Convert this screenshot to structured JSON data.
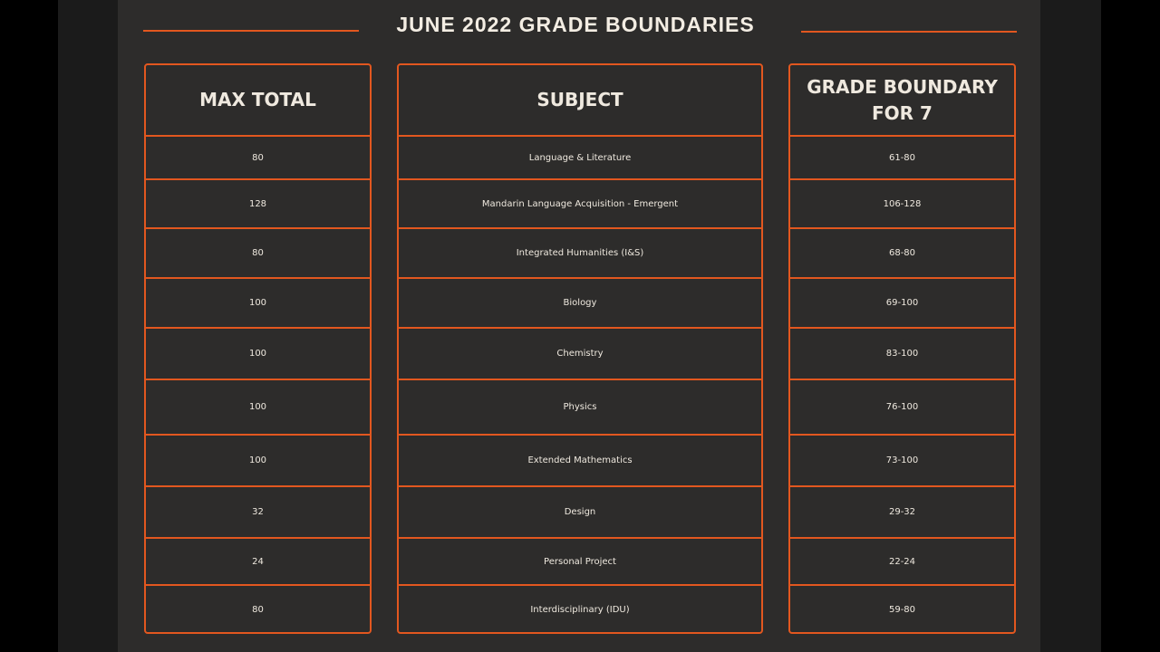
{
  "title": "JUNE 2022 GRADE BOUNDARIES",
  "columns": [
    {
      "header": "MAX TOTAL",
      "cells": [
        80,
        128,
        80,
        100,
        100,
        100,
        100,
        32,
        24,
        80
      ]
    },
    {
      "header": "SUBJECT",
      "cells": [
        "Language & Literature",
        "Mandarin Language Acquisition - Emergent",
        "Integrated Humanities (I&S)",
        "Biology",
        "Chemistry",
        "Physics",
        "Extended Mathematics",
        "Design",
        "Personal Project",
        "Interdisciplinary (IDU)"
      ]
    },
    {
      "header": "GRADE BOUNDARY FOR 7",
      "cells": [
        "61-80",
        "106-128",
        "68-80",
        "69-100",
        "83-100",
        "76-100",
        "73-100",
        "29-32",
        "22-24",
        "59-80"
      ]
    }
  ]
}
